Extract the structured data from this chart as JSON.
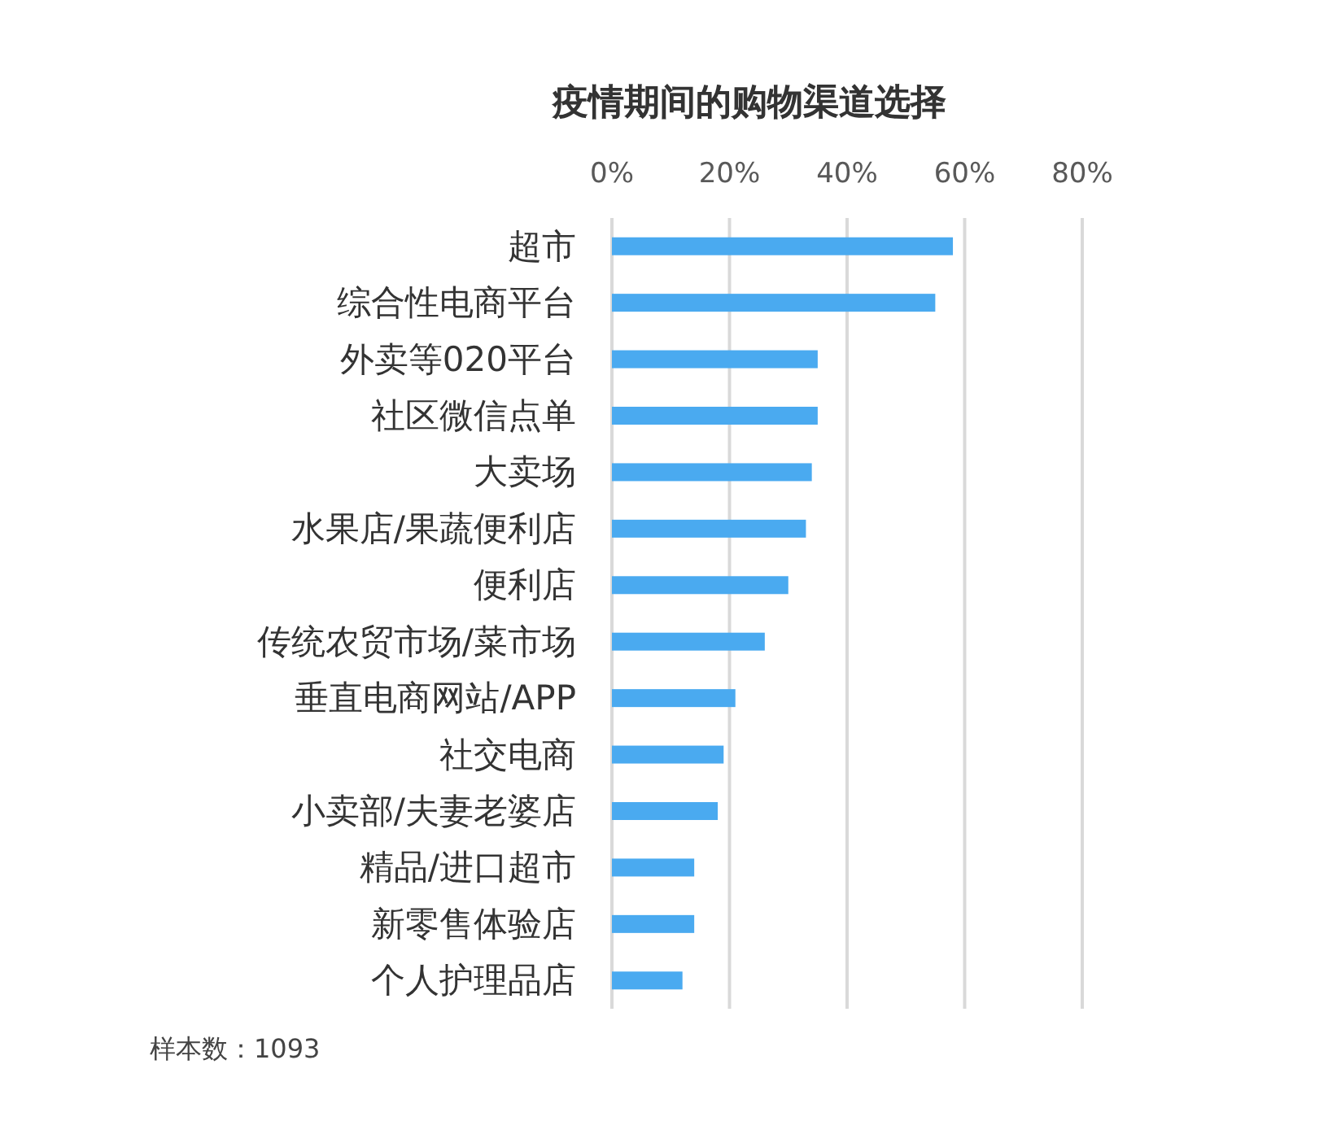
{
  "chart_data": {
    "type": "bar",
    "orientation": "horizontal",
    "title": "疫情期间的购物渠道选择",
    "categories": [
      "超市",
      "综合性电商平台",
      "外卖等020平台",
      "社区微信点单",
      "大卖场",
      "水果店/果蔬便利店",
      "便利店",
      "传统农贸市场/菜市场",
      "垂直电商网站/APP",
      "社交电商",
      "小卖部/夫妻老婆店",
      "精品/进口超市",
      "新零售体验店",
      "个人护理品店"
    ],
    "values": [
      58,
      55,
      35,
      35,
      34,
      33,
      30,
      26,
      21,
      19,
      18,
      14,
      14,
      12
    ],
    "color": "#4aaaf0",
    "xlim": [
      0,
      80
    ],
    "xticks": [
      {
        "value": 0,
        "label": "0%"
      },
      {
        "value": 20,
        "label": "20%"
      },
      {
        "value": 40,
        "label": "40%"
      },
      {
        "value": 60,
        "label": "60%"
      },
      {
        "value": 80,
        "label": "80%"
      }
    ],
    "grid": "x",
    "annotations": [
      "样本数：1093"
    ]
  }
}
